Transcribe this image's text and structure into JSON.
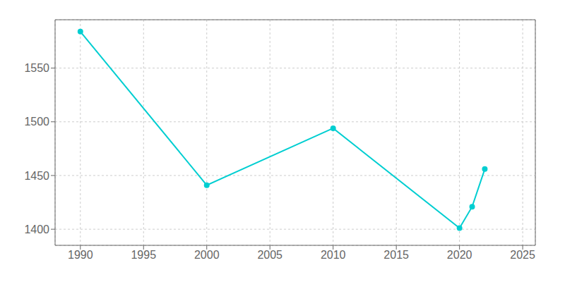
{
  "chart_data": {
    "type": "line",
    "x": [
      1990,
      2000,
      2010,
      2020,
      2021,
      2022
    ],
    "values": [
      1584,
      1441,
      1494,
      1401,
      1421,
      1456
    ],
    "color": "#00CED1",
    "marker": "circle",
    "xlim": [
      1988,
      2026
    ],
    "ylim": [
      1385,
      1595
    ],
    "xticks": [
      1990,
      1995,
      2000,
      2005,
      2010,
      2015,
      2020,
      2025
    ],
    "yticks": [
      1400,
      1450,
      1500,
      1550
    ],
    "grid": true
  }
}
